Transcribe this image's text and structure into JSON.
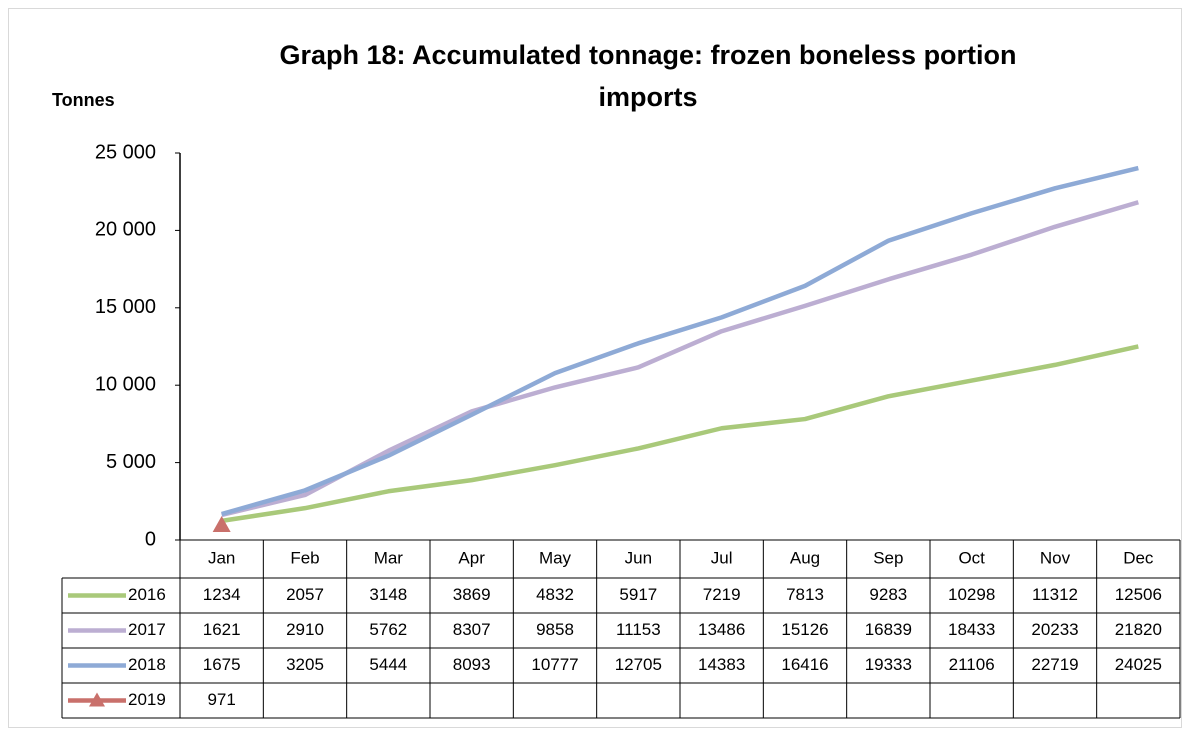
{
  "chart_data": {
    "type": "line",
    "title": "Graph 18: Accumulated tonnage: frozen boneless portion imports",
    "y_label": "Tonnes",
    "categories": [
      "Jan",
      "Feb",
      "Mar",
      "Apr",
      "May",
      "Jun",
      "Jul",
      "Aug",
      "Sep",
      "Oct",
      "Nov",
      "Dec"
    ],
    "series": [
      {
        "name": "2016",
        "color": "#a9c97a",
        "values": [
          1234,
          2057,
          3148,
          3869,
          4832,
          5917,
          7219,
          7813,
          9283,
          10298,
          11312,
          12506
        ]
      },
      {
        "name": "2017",
        "color": "#bcaed2",
        "values": [
          1621,
          2910,
          5762,
          8307,
          9858,
          11153,
          13486,
          15126,
          16839,
          18433,
          20233,
          21820
        ]
      },
      {
        "name": "2018",
        "color": "#8eaad6",
        "values": [
          1675,
          3205,
          5444,
          8093,
          10777,
          12705,
          14383,
          16416,
          19333,
          21106,
          22719,
          24025
        ]
      },
      {
        "name": "2019",
        "color": "#c9706b",
        "marker": "triangle",
        "values": [
          971,
          null,
          null,
          null,
          null,
          null,
          null,
          null,
          null,
          null,
          null,
          null
        ]
      }
    ],
    "ylim": [
      0,
      25000
    ],
    "yticks": [
      0,
      {
        "value": 5000,
        "label": "5 000"
      },
      {
        "value": 10000,
        "label": "10 000"
      },
      {
        "value": 15000,
        "label": "15 000"
      },
      {
        "value": 20000,
        "label": "20 000"
      },
      {
        "value": 25000,
        "label": "25 000"
      }
    ],
    "grid": false,
    "data_table": true
  }
}
